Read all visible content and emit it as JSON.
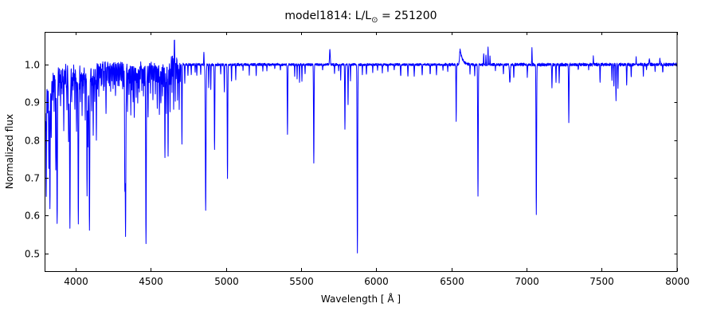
{
  "figure": {
    "title_prefix": "model1814: L/L",
    "title_sub": "⊙",
    "title_suffix": " = 251200"
  },
  "chart_data": {
    "type": "line",
    "title": "model1814: L/L⊙ = 251200",
    "xlabel": "Wavelength [ Å ]",
    "ylabel": "Normalized flux",
    "xlim": [
      3800,
      8000
    ],
    "ylim": [
      0.452,
      1.087
    ],
    "grid": false,
    "legend": "none",
    "line_color": "#0000ff",
    "continuum_level": 1.0,
    "x_ticks": [
      {
        "v": 4000,
        "label": "4000"
      },
      {
        "v": 4500,
        "label": "4500"
      },
      {
        "v": 5000,
        "label": "5000"
      },
      {
        "v": 5500,
        "label": "5500"
      },
      {
        "v": 6000,
        "label": "6000"
      },
      {
        "v": 6500,
        "label": "6500"
      },
      {
        "v": 7000,
        "label": "7000"
      },
      {
        "v": 7500,
        "label": "7500"
      },
      {
        "v": 8000,
        "label": "8000"
      }
    ],
    "y_ticks": [
      {
        "v": 0.5,
        "label": "0.5"
      },
      {
        "v": 0.6,
        "label": "0.6"
      },
      {
        "v": 0.7,
        "label": "0.7"
      },
      {
        "v": 0.8,
        "label": "0.8"
      },
      {
        "v": 0.9,
        "label": "0.9"
      },
      {
        "v": 1.0,
        "label": "1.0"
      }
    ],
    "noise_regions": [
      [
        3800,
        4700,
        0.01
      ],
      [
        4700,
        5350,
        0.004
      ],
      [
        5350,
        6450,
        0.0035
      ],
      [
        6450,
        6900,
        0.004
      ],
      [
        6900,
        8000,
        0.0045
      ]
    ],
    "absorption_lines": [
      [
        3801,
        0.84,
        1.5
      ],
      [
        3806,
        0.65,
        1.8
      ],
      [
        3814,
        0.87,
        1.5
      ],
      [
        3823,
        0.72,
        1.8
      ],
      [
        3830,
        0.615,
        2.0
      ],
      [
        3839,
        0.8,
        1.6
      ],
      [
        3848,
        0.9,
        1.5
      ],
      [
        3858,
        0.88,
        1.5
      ],
      [
        3869,
        0.72,
        1.8
      ],
      [
        3878,
        0.576,
        2.2
      ],
      [
        3890,
        0.92,
        1.4
      ],
      [
        3901,
        0.89,
        1.5
      ],
      [
        3911,
        0.93,
        1.4
      ],
      [
        3922,
        0.83,
        1.6
      ],
      [
        3932,
        0.95,
        1.3
      ],
      [
        3943,
        0.88,
        1.5
      ],
      [
        3954,
        0.8,
        1.6
      ],
      [
        3963,
        0.562,
        2.2
      ],
      [
        3975,
        0.9,
        1.4
      ],
      [
        3985,
        0.93,
        1.3
      ],
      [
        3996,
        0.88,
        1.5
      ],
      [
        4007,
        0.83,
        1.6
      ],
      [
        4019,
        0.586,
        2.2
      ],
      [
        4033,
        0.9,
        1.4
      ],
      [
        4044,
        0.87,
        1.5
      ],
      [
        4054,
        0.92,
        1.4
      ],
      [
        4065,
        0.85,
        1.5
      ],
      [
        4077,
        0.65,
        1.8
      ],
      [
        4083,
        0.78,
        1.5
      ],
      [
        4093,
        0.562,
        2.2
      ],
      [
        4107,
        0.88,
        1.5
      ],
      [
        4118,
        0.82,
        1.6
      ],
      [
        4128,
        0.9,
        1.4
      ],
      [
        4139,
        0.8,
        1.6
      ],
      [
        4155,
        0.92,
        1.4
      ],
      [
        4171,
        0.94,
        1.3
      ],
      [
        4187,
        0.93,
        1.3
      ],
      [
        4203,
        0.87,
        1.5
      ],
      [
        4219,
        0.95,
        1.3
      ],
      [
        4234,
        0.93,
        1.3
      ],
      [
        4250,
        0.94,
        1.3
      ],
      [
        4266,
        0.92,
        1.4
      ],
      [
        4282,
        0.94,
        1.3
      ],
      [
        4298,
        0.95,
        1.3
      ],
      [
        4314,
        0.93,
        1.3
      ],
      [
        4328,
        0.7,
        1.6
      ],
      [
        4333,
        0.554,
        2.2
      ],
      [
        4346,
        0.88,
        1.4
      ],
      [
        4356,
        0.92,
        1.3
      ],
      [
        4368,
        0.87,
        1.5
      ],
      [
        4383,
        0.9,
        1.4
      ],
      [
        4391,
        0.865,
        1.5
      ],
      [
        4404,
        0.91,
        1.4
      ],
      [
        4414,
        0.9,
        1.4
      ],
      [
        4425,
        0.93,
        1.3
      ],
      [
        4441,
        0.94,
        1.3
      ],
      [
        4452,
        0.92,
        1.3
      ],
      [
        4469,
        0.522,
        2.2
      ],
      [
        4483,
        0.86,
        1.5
      ],
      [
        4499,
        0.93,
        1.3
      ],
      [
        4515,
        0.91,
        1.4
      ],
      [
        4531,
        0.92,
        1.3
      ],
      [
        4544,
        0.885,
        1.4
      ],
      [
        4558,
        0.86,
        1.5
      ],
      [
        4568,
        0.89,
        1.4
      ],
      [
        4579,
        0.91,
        1.3
      ],
      [
        4595,
        0.75,
        1.6
      ],
      [
        4605,
        0.87,
        1.4
      ],
      [
        4616,
        0.755,
        1.6
      ],
      [
        4629,
        0.87,
        1.4
      ],
      [
        4642,
        0.88,
        1.3
      ],
      [
        4653,
        0.86,
        1.3
      ],
      [
        4664,
        0.89,
        1.3
      ],
      [
        4679,
        0.9,
        1.3
      ],
      [
        4690,
        0.88,
        1.3
      ],
      [
        4708,
        0.79,
        1.6
      ],
      [
        4727,
        0.95,
        1.3
      ],
      [
        4748,
        0.97,
        1.2
      ],
      [
        4770,
        0.975,
        1.2
      ],
      [
        4796,
        0.98,
        1.2
      ],
      [
        4807,
        0.97,
        1.2
      ],
      [
        4833,
        0.975,
        1.2
      ],
      [
        4866,
        0.615,
        2.4
      ],
      [
        4886,
        0.94,
        1.3
      ],
      [
        4900,
        0.937,
        1.3
      ],
      [
        4925,
        0.773,
        1.8
      ],
      [
        4966,
        0.975,
        1.2
      ],
      [
        4990,
        0.93,
        1.3
      ],
      [
        5011,
        0.695,
        1.8
      ],
      [
        5038,
        0.953,
        1.2
      ],
      [
        5066,
        0.96,
        1.2
      ],
      [
        5114,
        0.985,
        1.2
      ],
      [
        5156,
        0.975,
        1.2
      ],
      [
        5202,
        0.97,
        1.2
      ],
      [
        5246,
        0.985,
        1.2
      ],
      [
        5273,
        0.985,
        1.2
      ],
      [
        5326,
        0.99,
        1.2
      ],
      [
        5363,
        0.985,
        1.2
      ],
      [
        5410,
        0.816,
        1.7
      ],
      [
        5458,
        0.97,
        1.2
      ],
      [
        5474,
        0.965,
        1.2
      ],
      [
        5490,
        0.955,
        1.2
      ],
      [
        5506,
        0.957,
        1.2
      ],
      [
        5527,
        0.975,
        1.2
      ],
      [
        5585,
        0.74,
        1.8
      ],
      [
        5644,
        0.985,
        1.2
      ],
      [
        5723,
        0.975,
        1.2
      ],
      [
        5750,
        0.985,
        1.2
      ],
      [
        5764,
        0.96,
        1.2
      ],
      [
        5792,
        0.827,
        1.6
      ],
      [
        5813,
        0.895,
        1.5
      ],
      [
        5829,
        0.96,
        1.2
      ],
      [
        5875,
        0.501,
        2.0
      ],
      [
        5908,
        0.975,
        1.2
      ],
      [
        5935,
        0.972,
        1.3
      ],
      [
        5977,
        0.98,
        1.2
      ],
      [
        6009,
        0.985,
        1.3
      ],
      [
        6041,
        0.98,
        1.3
      ],
      [
        6078,
        0.982,
        1.3
      ],
      [
        6120,
        0.985,
        1.3
      ],
      [
        6163,
        0.968,
        1.5
      ],
      [
        6211,
        0.968,
        1.5
      ],
      [
        6253,
        0.97,
        1.5
      ],
      [
        6306,
        0.972,
        1.5
      ],
      [
        6359,
        0.973,
        1.5
      ],
      [
        6401,
        0.975,
        1.5
      ],
      [
        6444,
        0.985,
        1.3
      ],
      [
        6476,
        0.982,
        1.3
      ],
      [
        6532,
        0.85,
        1.5
      ],
      [
        6624,
        0.975,
        1.3
      ],
      [
        6655,
        0.97,
        1.2
      ],
      [
        6677,
        0.652,
        1.9
      ],
      [
        6793,
        0.985,
        1.2
      ],
      [
        6846,
        0.975,
        1.4
      ],
      [
        6889,
        0.952,
        2.8
      ],
      [
        6915,
        0.965,
        1.4
      ],
      [
        7005,
        0.968,
        1.4
      ],
      [
        7065,
        0.6,
        1.9
      ],
      [
        7169,
        0.942,
        1.6
      ],
      [
        7196,
        0.952,
        1.3
      ],
      [
        7217,
        0.955,
        1.3
      ],
      [
        7281,
        0.85,
        1.7
      ],
      [
        7344,
        0.985,
        1.2
      ],
      [
        7413,
        0.988,
        1.2
      ],
      [
        7489,
        0.953,
        1.4
      ],
      [
        7568,
        0.958,
        1.3
      ],
      [
        7581,
        0.942,
        1.3
      ],
      [
        7595,
        0.905,
        1.5
      ],
      [
        7608,
        0.938,
        1.3
      ],
      [
        7666,
        0.945,
        1.4
      ],
      [
        7696,
        0.965,
        1.3
      ],
      [
        7777,
        0.972,
        1.3
      ],
      [
        7798,
        0.985,
        1.2
      ],
      [
        7855,
        0.985,
        1.3
      ],
      [
        7906,
        0.978,
        1.4
      ]
    ],
    "weak_line_sigma": 1.2,
    "weak_line_forest": [
      [
        3811,
        0.95
      ],
      [
        3818,
        0.93
      ],
      [
        3835,
        0.94
      ],
      [
        3844,
        0.95
      ],
      [
        3853,
        0.93
      ],
      [
        3863,
        0.95
      ],
      [
        3874,
        0.94
      ],
      [
        3884,
        0.96
      ],
      [
        3896,
        0.95
      ],
      [
        3907,
        0.94
      ],
      [
        3917,
        0.96
      ],
      [
        3928,
        0.95
      ],
      [
        3939,
        0.94
      ],
      [
        3950,
        0.96
      ],
      [
        3958,
        0.93
      ],
      [
        3969,
        0.95
      ],
      [
        3980,
        0.94
      ],
      [
        3991,
        0.96
      ],
      [
        4002,
        0.95
      ],
      [
        4012,
        0.94
      ],
      [
        4026,
        0.93
      ],
      [
        4038,
        0.95
      ],
      [
        4049,
        0.94
      ],
      [
        4060,
        0.96
      ],
      [
        4071,
        0.95
      ],
      [
        4087,
        0.93
      ],
      [
        4100,
        0.95
      ],
      [
        4112,
        0.94
      ],
      [
        4124,
        0.96
      ],
      [
        4134,
        0.95
      ],
      [
        4147,
        0.94
      ],
      [
        4163,
        0.96
      ],
      [
        4176,
        0.95
      ],
      [
        4192,
        0.94
      ],
      [
        4209,
        0.96
      ],
      [
        4226,
        0.95
      ],
      [
        4242,
        0.96
      ],
      [
        4258,
        0.95
      ],
      [
        4274,
        0.96
      ],
      [
        4290,
        0.95
      ],
      [
        4306,
        0.96
      ],
      [
        4321,
        0.94
      ],
      [
        4338,
        0.95
      ],
      [
        4351,
        0.96
      ],
      [
        4361,
        0.95
      ],
      [
        4375,
        0.94
      ],
      [
        4398,
        0.96
      ],
      [
        4409,
        0.95
      ],
      [
        4420,
        0.94
      ],
      [
        4431,
        0.96
      ],
      [
        4446,
        0.95
      ],
      [
        4458,
        0.94
      ],
      [
        4476,
        0.96
      ],
      [
        4490,
        0.95
      ],
      [
        4507,
        0.96
      ],
      [
        4522,
        0.95
      ],
      [
        4537,
        0.96
      ],
      [
        4550,
        0.95
      ],
      [
        4563,
        0.96
      ],
      [
        4573,
        0.95
      ],
      [
        4586,
        0.94
      ],
      [
        4601,
        0.95
      ],
      [
        4611,
        0.96
      ],
      [
        4622,
        0.95
      ],
      [
        4634,
        0.94
      ],
      [
        4647,
        0.95
      ],
      [
        4670,
        0.94
      ],
      [
        4685,
        0.95
      ],
      [
        4697,
        0.96
      ]
    ],
    "emission_features": [
      [
        4655,
        1.022,
        16,
        0
      ],
      [
        4643,
        1.04,
        2.2,
        0
      ],
      [
        4658,
        1.048,
        1.4,
        0
      ],
      [
        4854,
        1.036,
        1.2,
        0
      ],
      [
        5692,
        1.04,
        2.4,
        0
      ],
      [
        6558,
        1.04,
        3.5,
        16
      ],
      [
        6715,
        1.028,
        1.4,
        0
      ],
      [
        6730,
        1.026,
        1.3,
        0
      ],
      [
        6744,
        1.05,
        1.2,
        0
      ],
      [
        6757,
        1.02,
        1.2,
        0
      ],
      [
        7036,
        1.045,
        1.3,
        0
      ],
      [
        7444,
        1.02,
        1.4,
        0
      ],
      [
        7729,
        1.018,
        1.4,
        0
      ],
      [
        7817,
        1.014,
        2.2,
        0
      ],
      [
        7887,
        1.014,
        2.2,
        0
      ]
    ]
  }
}
